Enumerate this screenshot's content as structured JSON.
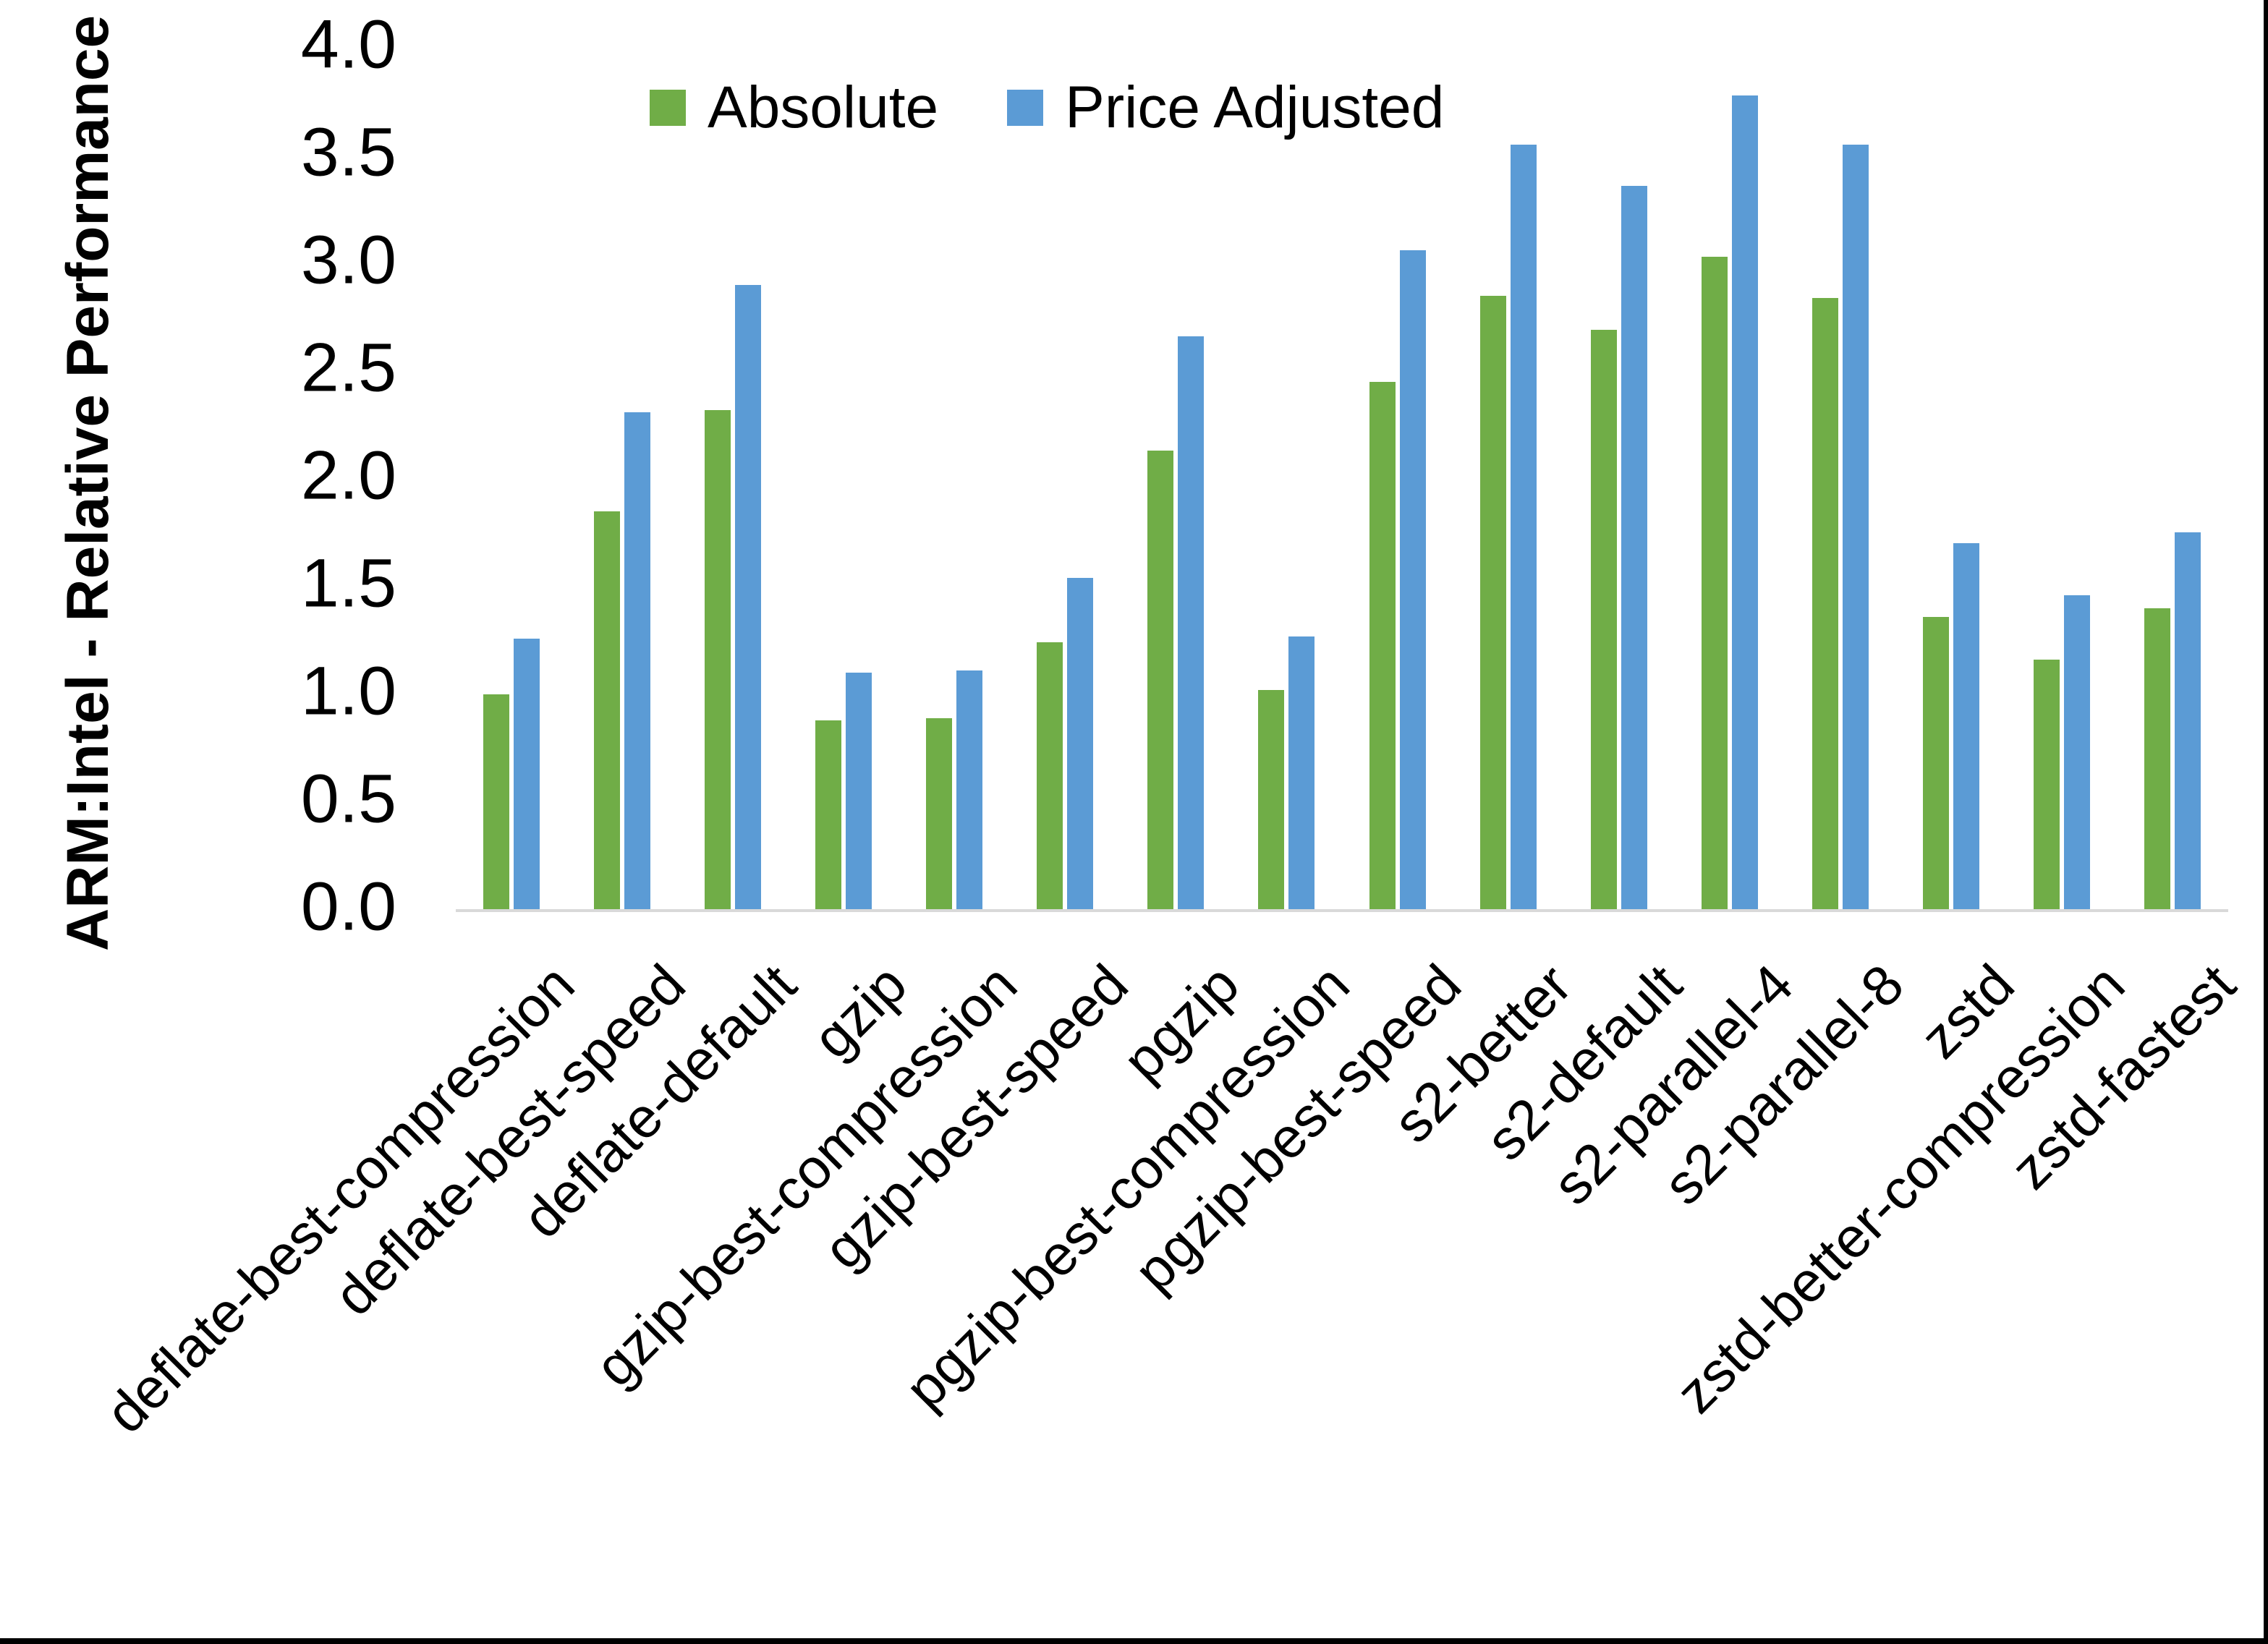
{
  "chart_data": {
    "type": "bar",
    "title": "",
    "xlabel": "",
    "ylabel": "ARM:Intel - Relative Performance",
    "ylim": [
      0.0,
      4.0
    ],
    "ytick_step": 0.5,
    "yticks": [
      "0.0",
      "0.5",
      "1.0",
      "1.5",
      "2.0",
      "2.5",
      "3.0",
      "3.5",
      "4.0"
    ],
    "grid": "off",
    "legend_position": "top-center",
    "background_color": "#FFFFFF",
    "axis_line_color": "#D9D9D9",
    "text_color": "#000000",
    "categories": [
      "deflate-best-compression",
      "deflate-best-speed",
      "deflate-default",
      "gzip",
      "gzip-best-compression",
      "gzip-best-speed",
      "pgzip",
      "pgzip-best-compression",
      "pgzip-best-speed",
      "s2-better",
      "s2-default",
      "s2-parallel-4",
      "s2-parallel-8",
      "zstd",
      "zstd-better-compression",
      "zstd-fastest"
    ],
    "series": [
      {
        "name": "Absolute",
        "color": "#70AD47",
        "values": [
          1.0,
          1.85,
          2.32,
          0.88,
          0.89,
          1.24,
          2.13,
          1.02,
          2.45,
          2.85,
          2.69,
          3.03,
          2.84,
          1.36,
          1.16,
          1.4
        ]
      },
      {
        "name": "Price Adjusted",
        "color": "#5B9BD5",
        "values": [
          1.26,
          2.31,
          2.9,
          1.1,
          1.11,
          1.54,
          2.66,
          1.27,
          3.06,
          3.55,
          3.36,
          3.78,
          3.55,
          1.7,
          1.46,
          1.75
        ]
      }
    ]
  }
}
